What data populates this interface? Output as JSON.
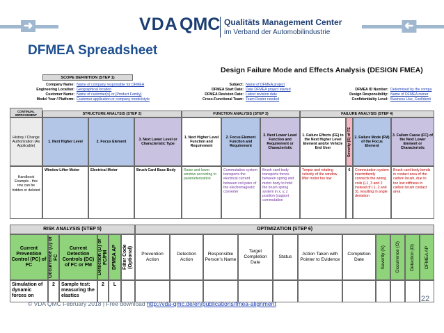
{
  "header": {
    "vda": "VDA",
    "qmc": "QMC",
    "org_name": "Qualitäts Management Center",
    "org_sub": "im Verband der Automobilindustrie"
  },
  "slide": {
    "title": "DFMEA Spreadsheet",
    "page_number": "22"
  },
  "sheet": {
    "doc_title": "Design Failure Mode and Effects Analysis (DESIGN FMEA)",
    "scope_header": "SCOPE DEFINITION (STEP 1)",
    "left_meta": [
      {
        "label": "Company Name:",
        "value": "Name of company responsible for DFMEA"
      },
      {
        "label": "Engineering Location:",
        "value": "Geographical location"
      },
      {
        "label": "Customer Name:",
        "value": "Name of customer(s) or [Product Family]"
      },
      {
        "label": "Model Year / Platform:",
        "value": "Customer application or company model/style"
      }
    ],
    "mid_meta": [
      {
        "label": "Subject:",
        "value": "Name of DFMEA project"
      },
      {
        "label": "DFMEA Start Date:",
        "value": "Date DFMEA project started"
      },
      {
        "label": "DFMEA Revision Date:",
        "value": "Latest revision date"
      },
      {
        "label": "Cross-Functional Team:",
        "value": "Team Roster needed"
      }
    ],
    "right_meta": [
      {
        "label": "DFMEA ID Number:",
        "value": "Determined by the compa"
      },
      {
        "label": "Design Responsibility:",
        "value": "Name of DFMEA owner"
      },
      {
        "label": "Confidentiality Level:",
        "value": "Business Use, Confidenti"
      }
    ],
    "continual_improvement": "CONTINUAL IMPROVEMENT",
    "structure_header": "STRUCTURE ANALYSIS (STEP 2)",
    "function_header": "FUNCTION ANALYSIS (STEP 3)",
    "failure_header": "FAILURE ANALYSIS (STEP 4)",
    "history_label": "History / Change Authorization (As Applicable)",
    "columns": {
      "next_higher_level": "1. Next Higher Level",
      "focus_element": "2. Focus Element",
      "next_lower_level": "3. Next Lower Level or Characteristic Type",
      "func_next_higher": "1. Next Higher Level Function and Requirement",
      "func_focus": "2. Focus Element Function and Requirement",
      "func_next_lower": "3. Next Lower Level Function and Requirement or Characteristic",
      "failure_effects": "1. Failure Effects (FE) to the Next Higher Level Element and/or Vehicle End User",
      "severity": "Severity (S) of FE",
      "failure_mode": "2. Failure Mode (FM) of the Focus Element",
      "failure_cause": "3. Failure Cause (FC) of the Next Lower Element or Characteristic"
    },
    "row": {
      "handbook_note": "Handbook Example - this row can be hidden or deleted",
      "next_higher_level": "Window Lifter Motor",
      "focus_element": "Electrical Motor",
      "next_lower_level": "Brush Card Base Body",
      "func_next_higher": "Raise and lower window according to parameterization",
      "func_focus": "Commutation system transports the electrical current between coil pairs of the electromagnetic converter",
      "func_next_lower": "Brush card body transports forces between spring and motor body to hold the brush spring system in x, y, z position (support commutation",
      "failure_effects": "Torque and rotating velocity of the window lifter motor too low",
      "severity": "6",
      "failure_mode": "Commutation system intermittently connects the wrong coils (L1, 3 and 2 instead of L1, 2 and 3), resulting in angle deviation",
      "failure_cause": "Brush card body bends in contact area of the carbon brush, due to too low stiffness in carbon brush contact area"
    },
    "risk_header": "RISK ANALYSIS (STEP 5)",
    "optimization_header": "OPTIMIZATION (STEP 6)",
    "risk_columns": {
      "current_prevention": "Current Prevention Control (PC) of FC",
      "occurrence": "Occurrence (O) of FC",
      "current_detection": "Current Detection Controls (DC) of FC or FM",
      "detection": "Detection (D) of FC/FM",
      "dfmea_ap": "DFMEA AP",
      "filter_code": "Filter Code (Optional)"
    },
    "opt_columns": {
      "prevention_action": "Prevention Action",
      "detection_action": "Detection Action",
      "responsible": "Responsible Person's Name",
      "target_date": "Target Completion Date",
      "status": "Status",
      "action_taken": "Action Taken with Pointer to Evidence",
      "completion_date": "Completion Date",
      "severity": "Severity (S)",
      "occurrence": "Occurrence (O)",
      "detection": "Detection (D)",
      "dfmea_ap": "DFMEA AP"
    },
    "risk_row": {
      "prevention": "Simulation of dynamic forces on",
      "occurrence": "2",
      "detection_control": "Sample test: measuring the elastics",
      "detection": "2",
      "ap": "L"
    }
  },
  "footer": {
    "text": "© VDA QMC February 2018 | Free download ",
    "link": "http://vda-qmc.de/en/publications/fmea-alignment"
  }
}
